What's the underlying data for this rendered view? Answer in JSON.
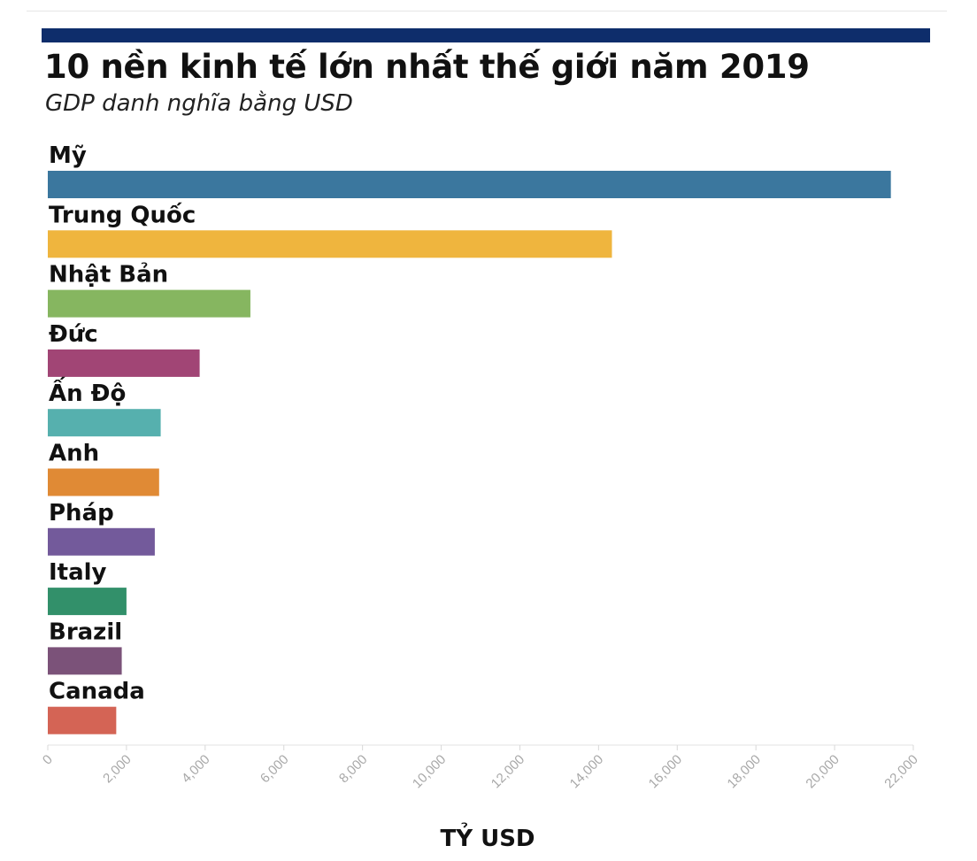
{
  "title": "10 nền kinh tế lớn nhất thế giới năm 2019",
  "subtitle": "GDP danh nghĩa bằng USD",
  "chart_data": {
    "type": "bar",
    "orientation": "horizontal",
    "title": "10 nền kinh tế lớn nhất thế giới năm 2019",
    "subtitle": "GDP danh nghĩa bằng USD",
    "xlabel": "TỶ USD",
    "ylabel": "",
    "xlim": [
      0,
      22000
    ],
    "xticks": [
      0,
      2000,
      4000,
      6000,
      8000,
      10000,
      12000,
      14000,
      16000,
      18000,
      20000,
      22000
    ],
    "xtick_labels": [
      "0",
      "2,000",
      "4,000",
      "6,000",
      "8,000",
      "10,000",
      "12,000",
      "14,000",
      "16,000",
      "18,000",
      "20,000",
      "22,000"
    ],
    "grid": false,
    "categories": [
      "Mỹ",
      "Trung Quốc",
      "Nhật Bản",
      "Đức",
      "Ấn Độ",
      "Anh",
      "Pháp",
      "Italy",
      "Brazil",
      "Canada"
    ],
    "values": [
      21430,
      14340,
      5150,
      3860,
      2870,
      2830,
      2720,
      2000,
      1880,
      1740
    ],
    "colors": [
      "#3b779e",
      "#efb53e",
      "#86b660",
      "#a14575",
      "#56b0ae",
      "#e08a35",
      "#735a9b",
      "#32906a",
      "#7b5279",
      "#d46455"
    ]
  }
}
